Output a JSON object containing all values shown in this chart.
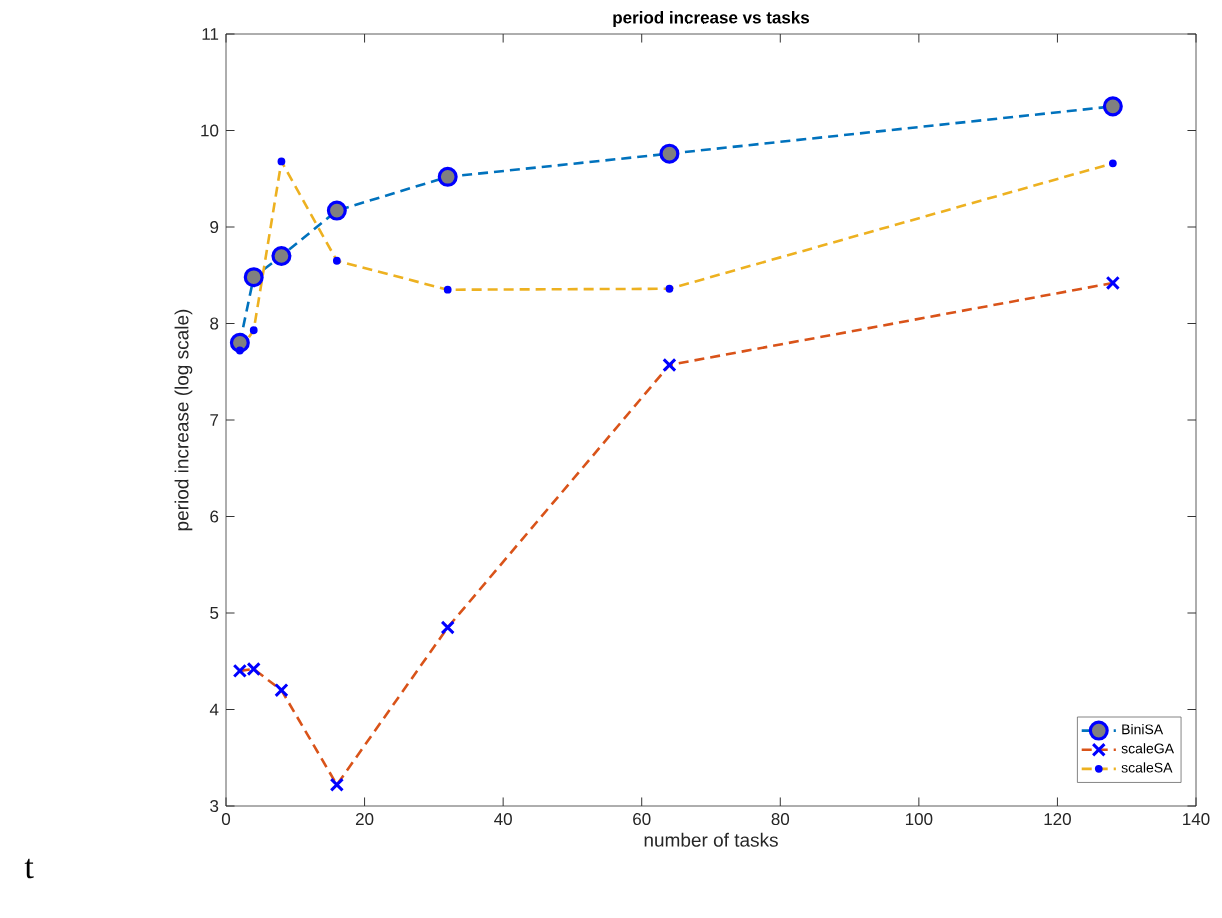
{
  "chart_data": {
    "type": "line",
    "title": "period increase vs tasks",
    "xlabel": "number of tasks",
    "ylabel": "period increase (log scale)",
    "x": [
      2,
      4,
      8,
      16,
      32,
      64,
      128
    ],
    "series": [
      {
        "name": "BiniSA",
        "color": "#0072bd",
        "marker": "circle",
        "values": [
          7.8,
          8.48,
          8.7,
          9.17,
          9.52,
          9.76,
          10.25
        ]
      },
      {
        "name": "scaleGA",
        "color": "#d95319",
        "marker": "cross",
        "values": [
          4.4,
          4.42,
          4.2,
          3.22,
          4.85,
          7.57,
          8.42
        ]
      },
      {
        "name": "scaleSA",
        "color": "#edb120",
        "marker": "circle",
        "values": [
          7.72,
          7.93,
          9.68,
          8.65,
          8.35,
          8.36,
          9.66
        ]
      }
    ],
    "xlim": [
      0,
      140
    ],
    "xticks": [
      0,
      20,
      40,
      60,
      80,
      100,
      120,
      140
    ],
    "ylim": [
      3,
      11
    ],
    "yticks": [
      3,
      4,
      5,
      6,
      7,
      8,
      9,
      10,
      11
    ],
    "line_style": "dashed",
    "legend": "bottom right",
    "grid": false,
    "annotations": [
      "t"
    ]
  }
}
